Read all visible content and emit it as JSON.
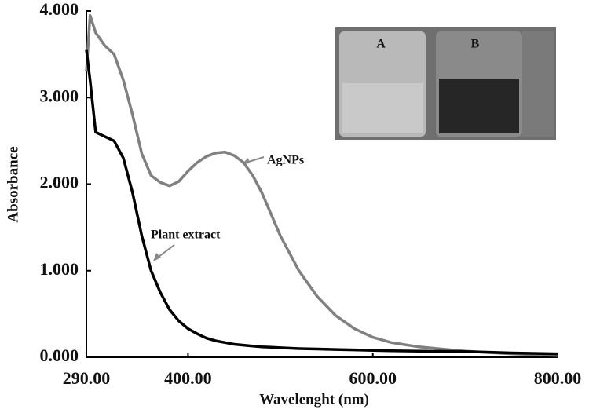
{
  "chart_data": {
    "type": "line",
    "x_label": "Wavelenght (nm)",
    "y_label": "Absorbance",
    "xlim": [
      290,
      800
    ],
    "ylim": [
      0,
      4
    ],
    "xticks": [
      {
        "value": 290,
        "label": "290.00"
      },
      {
        "value": 400,
        "label": "400.00"
      },
      {
        "value": 600,
        "label": "600.00"
      },
      {
        "value": 800,
        "label": "800.00"
      }
    ],
    "yticks": [
      {
        "value": 0,
        "label": "0.000"
      },
      {
        "value": 1,
        "label": "1.000"
      },
      {
        "value": 2,
        "label": "2.000"
      },
      {
        "value": 3,
        "label": "3.000"
      },
      {
        "value": 4,
        "label": "4.000"
      }
    ],
    "x": [
      290,
      294,
      300,
      310,
      320,
      330,
      340,
      350,
      360,
      370,
      380,
      390,
      400,
      410,
      420,
      430,
      440,
      450,
      460,
      470,
      480,
      490,
      500,
      520,
      540,
      560,
      580,
      600,
      620,
      650,
      680,
      700,
      750,
      800
    ],
    "series": [
      {
        "name": "AgNPs",
        "color": "#808080",
        "values": [
          3.3,
          3.95,
          3.75,
          3.6,
          3.5,
          3.2,
          2.8,
          2.35,
          2.1,
          2.02,
          1.98,
          2.03,
          2.15,
          2.25,
          2.32,
          2.36,
          2.37,
          2.33,
          2.25,
          2.1,
          1.9,
          1.65,
          1.4,
          1.0,
          0.7,
          0.48,
          0.33,
          0.23,
          0.17,
          0.12,
          0.09,
          0.07,
          0.04,
          0.02
        ]
      },
      {
        "name": "Plant extract",
        "color": "#000000",
        "values": [
          3.55,
          3.2,
          2.6,
          2.55,
          2.5,
          2.3,
          1.9,
          1.4,
          1.0,
          0.75,
          0.55,
          0.42,
          0.33,
          0.27,
          0.22,
          0.19,
          0.17,
          0.15,
          0.14,
          0.13,
          0.12,
          0.115,
          0.11,
          0.1,
          0.095,
          0.09,
          0.085,
          0.08,
          0.075,
          0.07,
          0.068,
          0.065,
          0.05,
          0.04
        ]
      }
    ],
    "inset": {
      "labels": [
        "A",
        "B"
      ]
    }
  }
}
